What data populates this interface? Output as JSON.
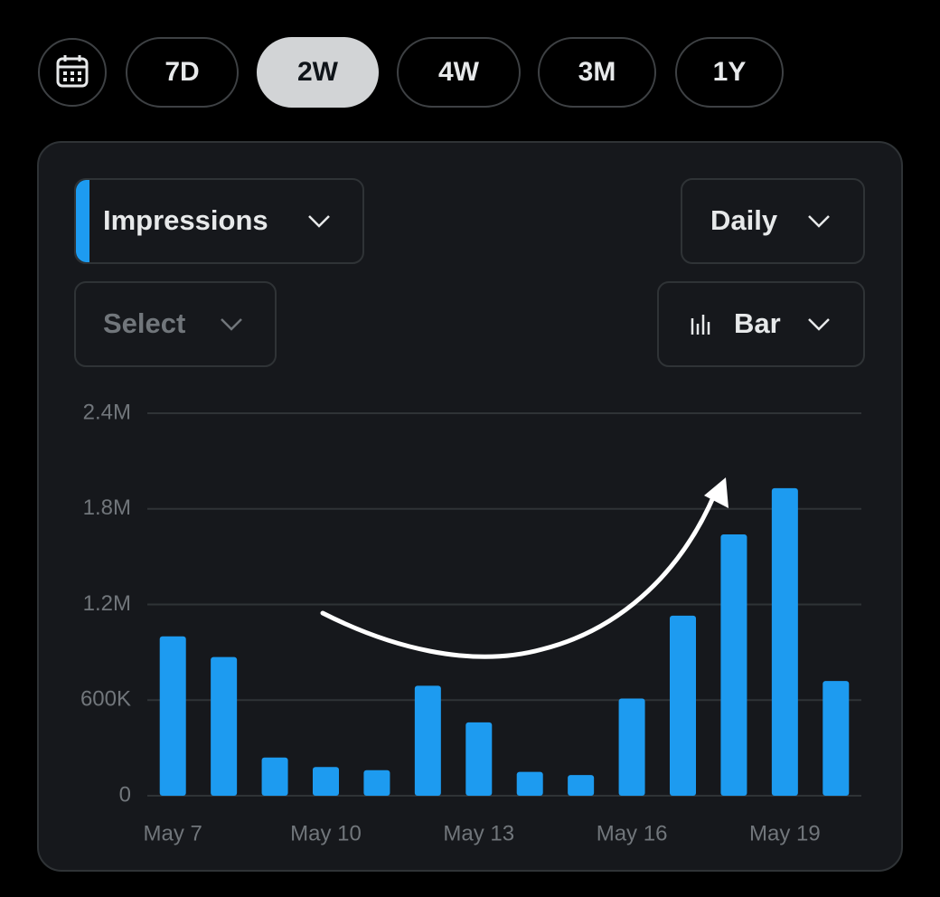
{
  "tabs": [
    "7D",
    "2W",
    "4W",
    "3M",
    "1Y"
  ],
  "selected_tab": "2W",
  "metric": "Impressions",
  "interval": "Daily",
  "compare": "Select",
  "chart_style": "Bar",
  "chart_data": {
    "type": "bar",
    "categories": [
      "May 7",
      null,
      null,
      "May 10",
      null,
      null,
      "May 13",
      null,
      null,
      "May 16",
      null,
      null,
      "May 19",
      null
    ],
    "values": [
      1000000,
      870000,
      240000,
      180000,
      160000,
      690000,
      460000,
      150000,
      130000,
      610000,
      1130000,
      1640000,
      1930000,
      720000
    ],
    "color": "#1d9bf0",
    "ylim": [
      0,
      2400000
    ],
    "yticks": [
      0,
      {
        "value": 600000,
        "label": "600K"
      },
      {
        "value": 1200000,
        "label": "1.2M"
      },
      {
        "value": 1800000,
        "label": "1.8M"
      },
      {
        "value": 2400000,
        "label": "2.4M"
      }
    ],
    "grid": true
  }
}
